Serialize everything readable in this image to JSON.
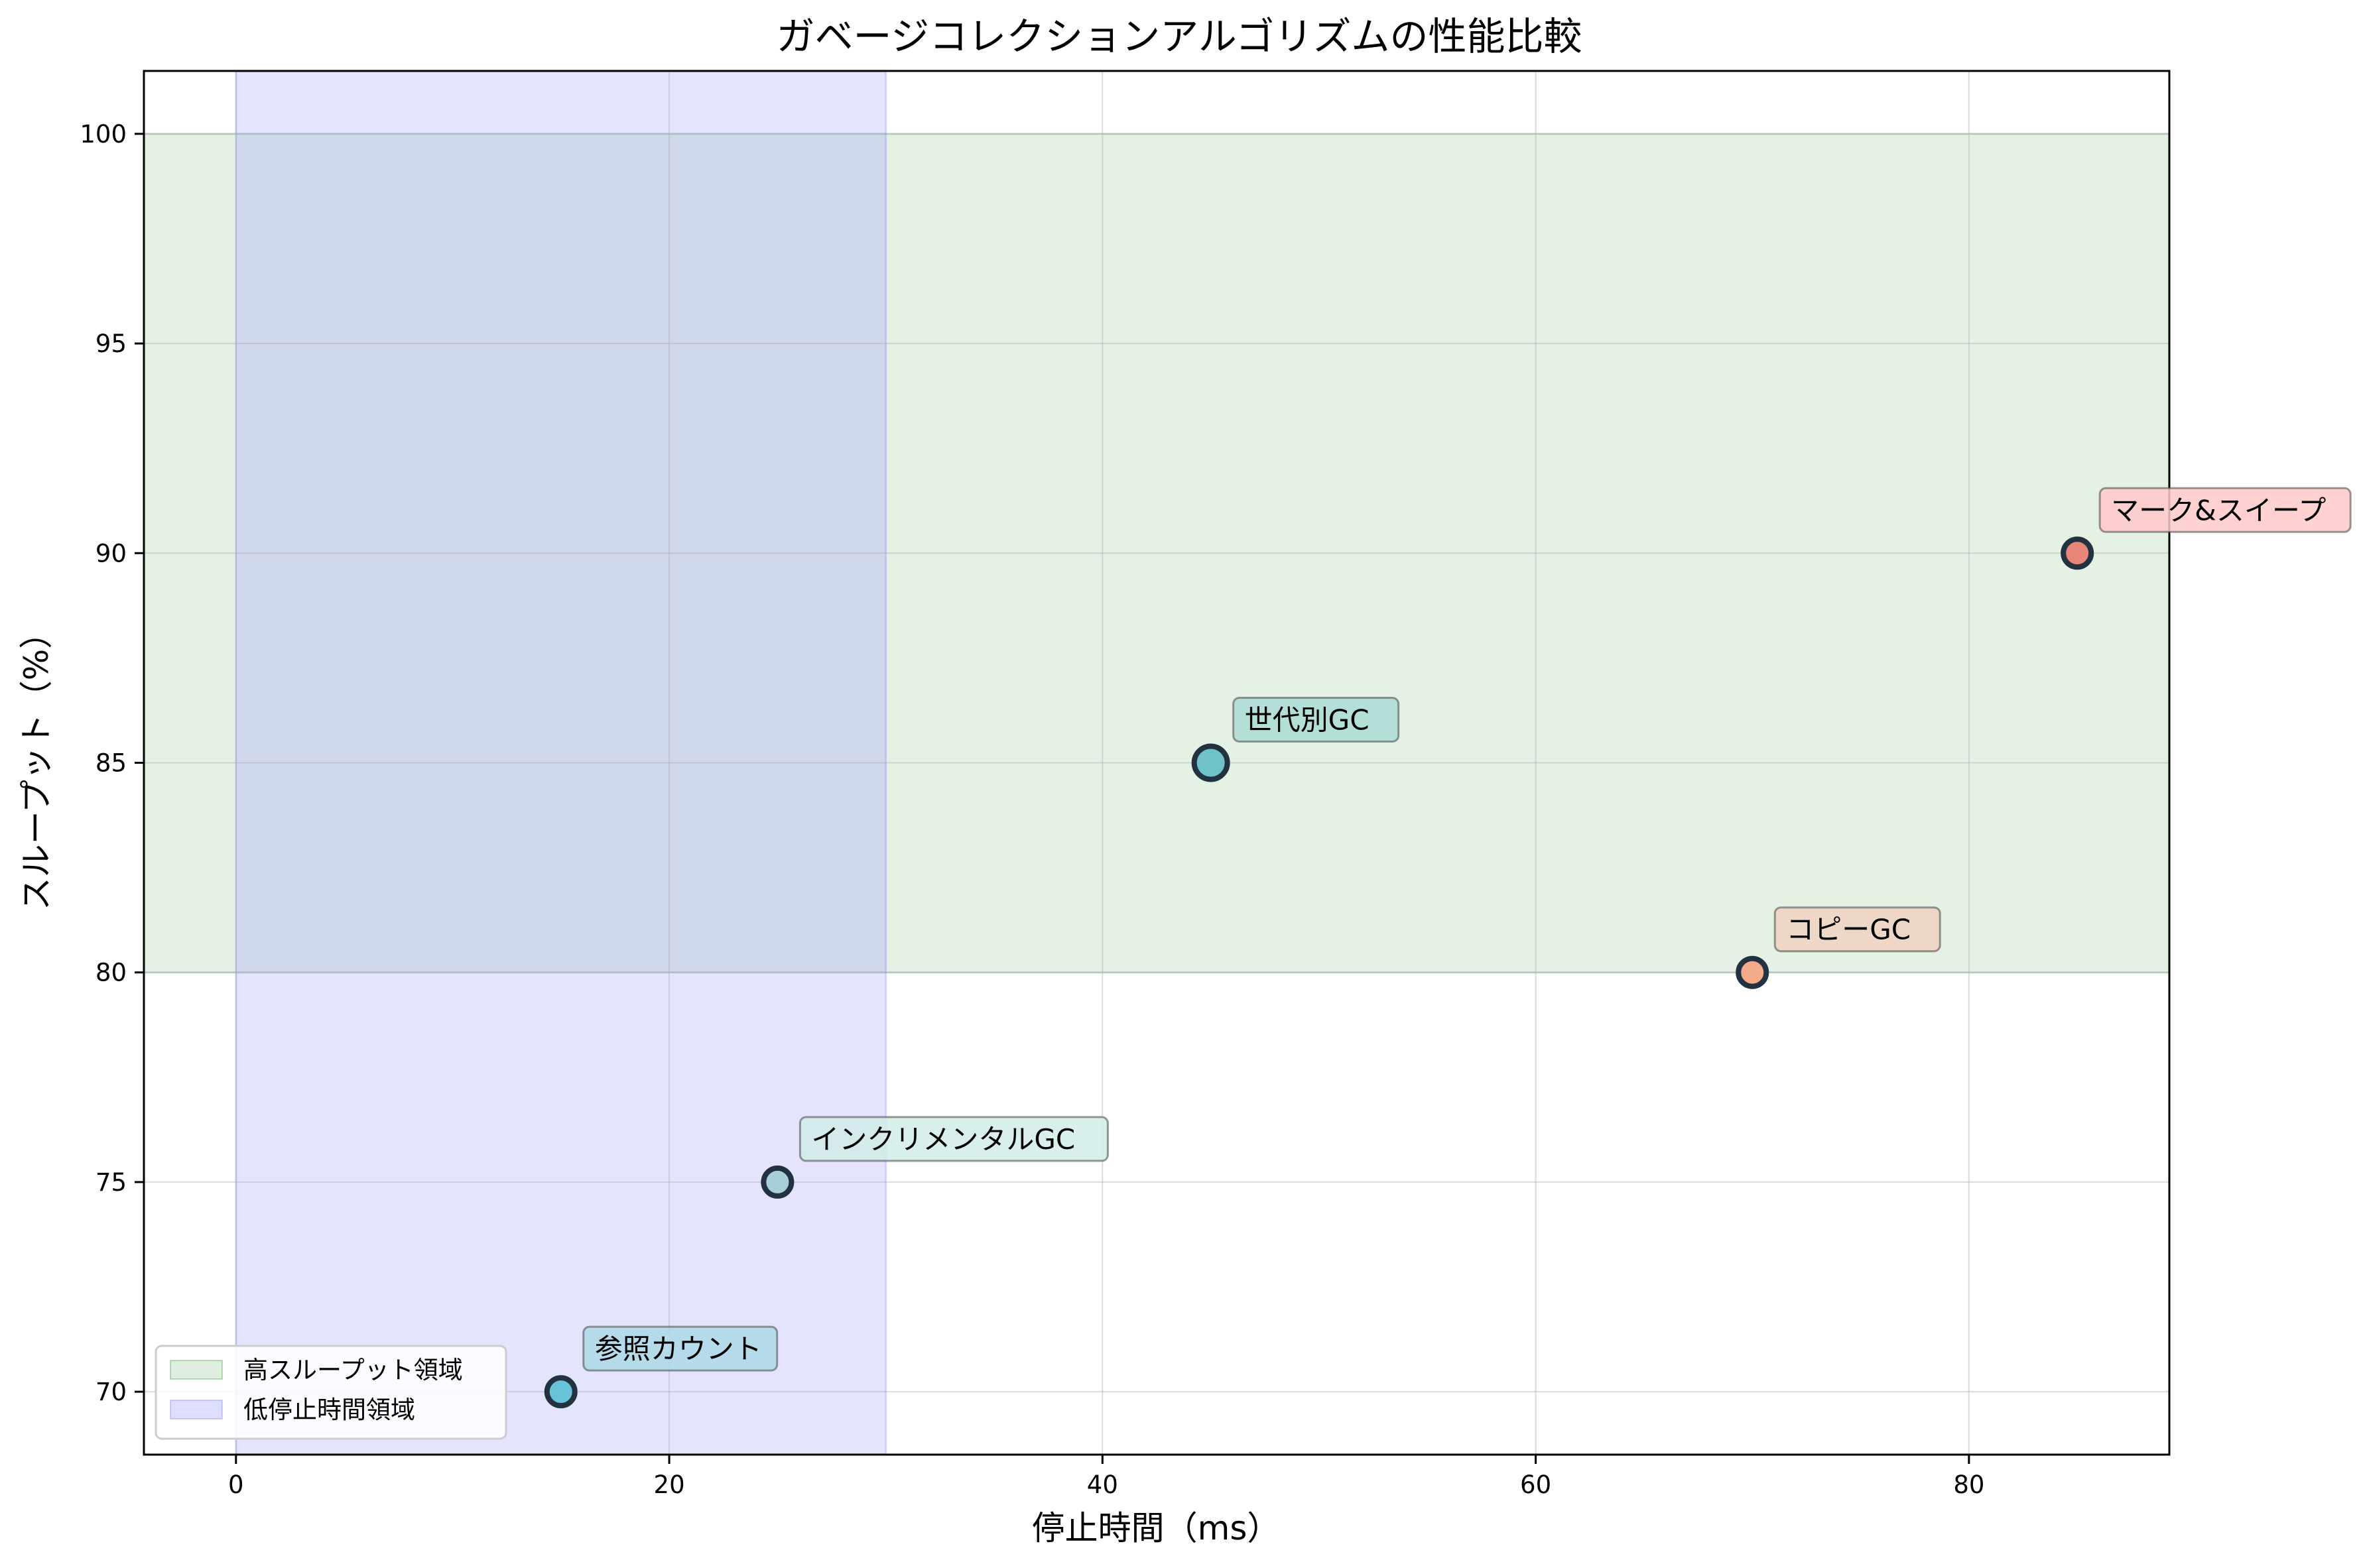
{
  "chart_data": {
    "type": "scatter",
    "title": "ガベージコレクションアルゴリズムの性能比較",
    "xlabel": "停止時間（ms）",
    "ylabel": "スループット（%）",
    "xlim": [
      -4.25,
      89.25
    ],
    "ylim": [
      68.5,
      101.5
    ],
    "xticks": [
      0,
      20,
      40,
      60,
      80
    ],
    "yticks": [
      70,
      75,
      80,
      85,
      90,
      95,
      100
    ],
    "grid": true,
    "legend_position": "lower-left",
    "points": [
      {
        "label": "マーク&スイープ",
        "x": 85,
        "y": 90,
        "color": "#e8867a",
        "box_color": "#ffc9c9"
      },
      {
        "label": "世代別GC",
        "x": 45,
        "y": 85,
        "color": "#6fc3c6",
        "box_color": "#aadcd6"
      },
      {
        "label": "コピーGC",
        "x": 70,
        "y": 80,
        "color": "#f3ab8a",
        "box_color": "#f0d2c2"
      },
      {
        "label": "インクリメンタルGC",
        "x": 25,
        "y": 75,
        "color": "#a6cfd8",
        "box_color": "#d2ece8"
      },
      {
        "label": "参照カウント",
        "x": 15,
        "y": 70,
        "color": "#66c3d8",
        "box_color": "#add8e6"
      }
    ],
    "regions": [
      {
        "name": "高スループット領域",
        "axis": "y",
        "range": [
          80,
          100
        ],
        "color": "#2e8b2e"
      },
      {
        "name": "低停止時間領域",
        "axis": "x",
        "range": [
          0,
          30
        ],
        "color": "#6a6aff"
      }
    ]
  }
}
